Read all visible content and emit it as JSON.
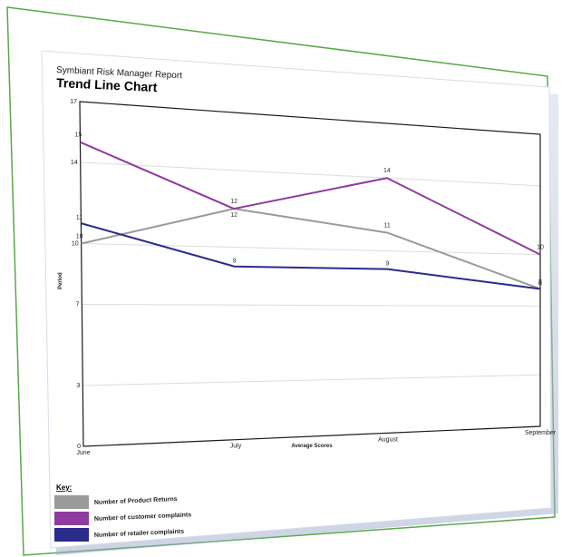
{
  "report": {
    "header": "Symbiant Risk Manager Report",
    "title": "Trend Line Chart"
  },
  "chart_data": {
    "type": "line",
    "categories": [
      "June",
      "July",
      "August",
      "September"
    ],
    "series": [
      {
        "name": "Number of Product Returns",
        "color": "#9a9a9a",
        "values": [
          10,
          12,
          11,
          8
        ]
      },
      {
        "name": "Number of customer complaints",
        "color": "#8e3a9e",
        "values": [
          15,
          12,
          14,
          10
        ]
      },
      {
        "name": "Number of retailer complaints",
        "color": "#2b2b8c",
        "values": [
          11,
          9,
          9,
          8
        ]
      }
    ],
    "xlabel": "Average Scores",
    "ylabel": "Period",
    "ylim": [
      0,
      17
    ],
    "y_ticks": [
      {
        "value": 17,
        "label": "17"
      },
      {
        "value": 14,
        "label": "14"
      },
      {
        "value": 10,
        "label": "10"
      },
      {
        "value": 7,
        "label": "7"
      },
      {
        "value": 3,
        "label": "3"
      },
      {
        "value": 0,
        "label": "0"
      }
    ],
    "grid": true,
    "legend": {
      "title": "Key:",
      "position": "bottom-left"
    }
  }
}
